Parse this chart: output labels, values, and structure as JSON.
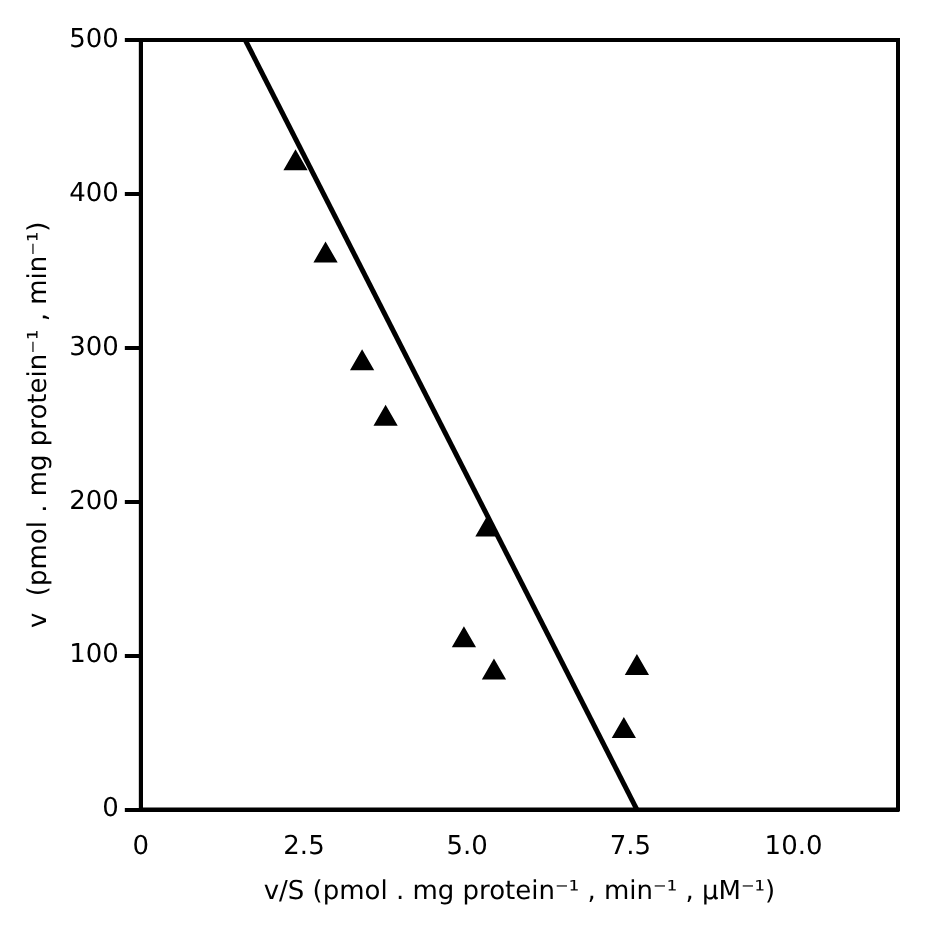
{
  "chart_data": {
    "type": "scatter",
    "xlabel": "v/S (pmol . mg protein⁻¹ , min⁻¹ , µM⁻¹)",
    "ylabel": "v  (pmol . mg protein⁻¹ , min⁻¹)",
    "series": [
      {
        "type": "scatter",
        "color": "#000000",
        "marker": "triangle",
        "x": [
          2.37,
          2.83,
          3.39,
          3.75,
          5.31,
          4.95,
          5.41,
          7.4,
          7.6
        ],
        "values": [
          420,
          360,
          290,
          254,
          182,
          110,
          89,
          51,
          92
        ]
      },
      {
        "type": "line",
        "color": "#000000",
        "line_style": "solid",
        "marker": "none",
        "x": [
          1.6,
          7.6
        ],
        "values": [
          500,
          0
        ]
      }
    ],
    "xlim": [
      0,
      11.6
    ],
    "xticks": [
      0,
      2.5,
      {
        "value": 5,
        "label": "5.0"
      },
      7.5,
      {
        "value": 10,
        "label": "10.0"
      }
    ],
    "ylim": [
      0,
      500
    ],
    "yticks": [
      0,
      100,
      200,
      300,
      400,
      500
    ],
    "grid": false,
    "legend": false
  }
}
